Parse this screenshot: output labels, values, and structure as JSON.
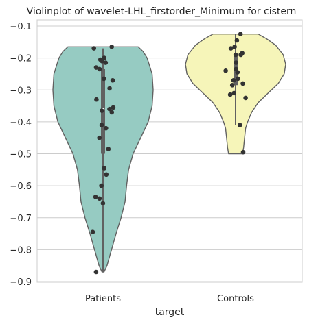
{
  "chart_data": {
    "type": "violin",
    "title": "Violinplot of wavelet-LHL_firstorder_Minimum for cistern",
    "xlabel": "target",
    "ylabel": "",
    "categories": [
      "Patients",
      "Controls"
    ],
    "ylim": [
      -0.9,
      -0.1
    ],
    "yticks": [
      -0.1,
      -0.2,
      -0.3,
      -0.4,
      -0.5,
      -0.6,
      -0.7,
      -0.8,
      -0.9
    ],
    "ytick_labels": [
      "−0.1",
      "−0.2",
      "−0.3",
      "−0.4",
      "−0.5",
      "−0.6",
      "−0.7",
      "−0.8",
      "−0.9"
    ],
    "grid": true,
    "colors": {
      "Patients": "#96cbc2",
      "Controls": "#f6f5b9",
      "points": "#333333",
      "outline": "#616161"
    },
    "series": [
      {
        "category": "Patients",
        "range": [
          -0.87,
          -0.165
        ],
        "quartiles": [
          -0.5,
          -0.36,
          -0.235
        ],
        "whiskers": [
          -0.87,
          -0.17
        ],
        "density_profile": [
          [
            -0.87,
            0.02
          ],
          [
            -0.85,
            0.08
          ],
          [
            -0.8,
            0.17
          ],
          [
            -0.75,
            0.26
          ],
          [
            -0.7,
            0.36
          ],
          [
            -0.65,
            0.44
          ],
          [
            -0.6,
            0.47
          ],
          [
            -0.55,
            0.51
          ],
          [
            -0.5,
            0.6
          ],
          [
            -0.45,
            0.75
          ],
          [
            -0.4,
            0.9
          ],
          [
            -0.35,
            0.98
          ],
          [
            -0.3,
            1.0
          ],
          [
            -0.25,
            0.98
          ],
          [
            -0.2,
            0.88
          ],
          [
            -0.18,
            0.8
          ],
          [
            -0.165,
            0.7
          ]
        ],
        "points": [
          -0.165,
          -0.17,
          -0.2,
          -0.205,
          -0.21,
          -0.215,
          -0.23,
          -0.235,
          -0.265,
          -0.27,
          -0.295,
          -0.33,
          -0.355,
          -0.36,
          -0.365,
          -0.37,
          -0.41,
          -0.42,
          -0.45,
          -0.485,
          -0.545,
          -0.565,
          -0.6,
          -0.635,
          -0.64,
          -0.655,
          -0.745,
          -0.87
        ]
      },
      {
        "category": "Controls",
        "range": [
          -0.5,
          -0.125
        ],
        "quartiles": [
          -0.285,
          -0.235,
          -0.19
        ],
        "whiskers": [
          -0.41,
          -0.125
        ],
        "density_profile": [
          [
            -0.5,
            0.14
          ],
          [
            -0.48,
            0.16
          ],
          [
            -0.45,
            0.18
          ],
          [
            -0.42,
            0.2
          ],
          [
            -0.4,
            0.24
          ],
          [
            -0.37,
            0.32
          ],
          [
            -0.34,
            0.45
          ],
          [
            -0.31,
            0.65
          ],
          [
            -0.28,
            0.85
          ],
          [
            -0.25,
            0.97
          ],
          [
            -0.22,
            1.0
          ],
          [
            -0.19,
            0.95
          ],
          [
            -0.16,
            0.8
          ],
          [
            -0.14,
            0.62
          ],
          [
            -0.125,
            0.45
          ]
        ],
        "points": [
          -0.125,
          -0.145,
          -0.165,
          -0.17,
          -0.185,
          -0.19,
          -0.19,
          -0.215,
          -0.235,
          -0.24,
          -0.245,
          -0.265,
          -0.27,
          -0.28,
          -0.285,
          -0.31,
          -0.315,
          -0.325,
          -0.41,
          -0.495
        ]
      }
    ]
  }
}
